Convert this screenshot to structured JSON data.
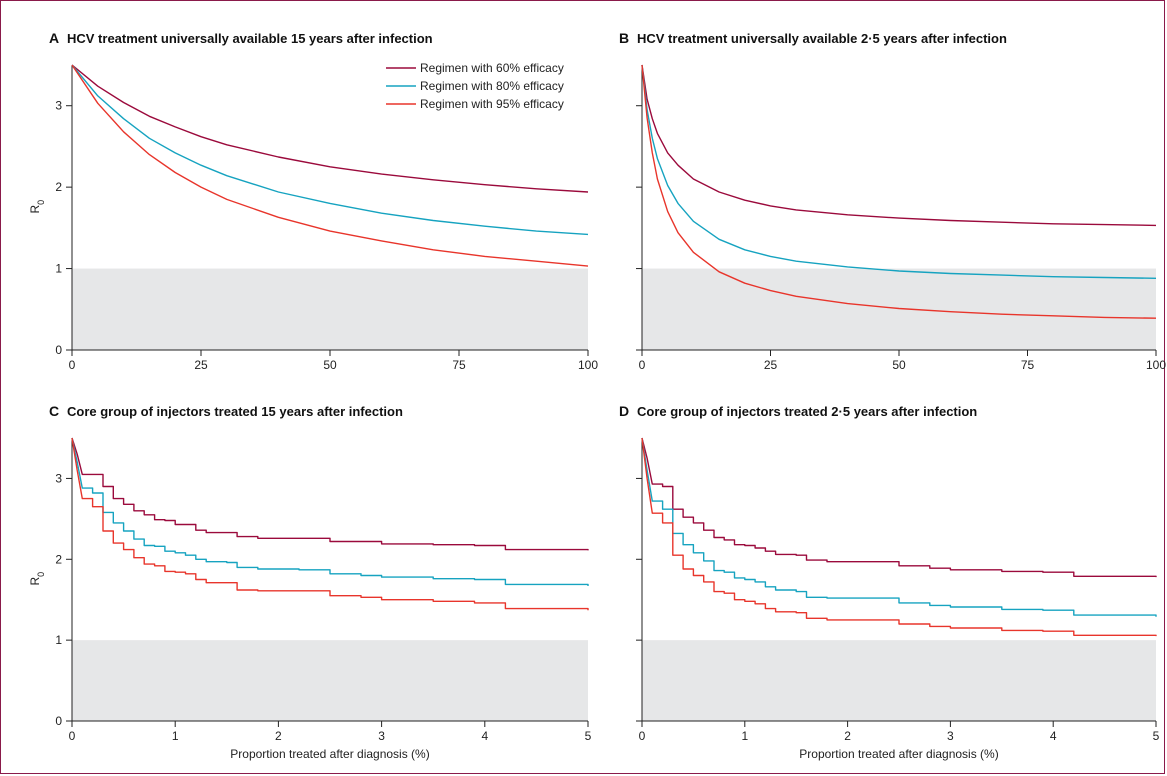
{
  "colors": {
    "60": "#9b0a3c",
    "80": "#16a3c0",
    "95": "#e8352b",
    "shade": "#e6e7e8",
    "frame": "#8a1a4a"
  },
  "legend": [
    {
      "key": "60",
      "label": "Regimen with 60% efficacy"
    },
    {
      "key": "80",
      "label": "Regimen with 80% efficacy"
    },
    {
      "key": "95",
      "label": "Regimen with 95% efficacy"
    }
  ],
  "chart_data": [
    {
      "panel": "A",
      "type": "line",
      "title": "HCV treatment universally available 15 years after infection",
      "ylabel": "R0",
      "xlabel": "",
      "xlim": [
        0,
        100
      ],
      "ylim": [
        0,
        3.5
      ],
      "xticks": [
        "0",
        "25",
        "50",
        "75",
        "100"
      ],
      "yticks": [
        "0",
        "1",
        "2",
        "3"
      ],
      "shade_below": 1,
      "series": [
        {
          "name": "Regimen with 60% efficacy",
          "key": "60",
          "x": [
            0,
            5,
            10,
            15,
            20,
            25,
            30,
            40,
            50,
            60,
            70,
            80,
            90,
            100
          ],
          "y": [
            3.5,
            3.24,
            3.04,
            2.87,
            2.74,
            2.62,
            2.52,
            2.37,
            2.25,
            2.16,
            2.09,
            2.03,
            1.98,
            1.94
          ]
        },
        {
          "name": "Regimen with 80% efficacy",
          "key": "80",
          "x": [
            0,
            5,
            10,
            15,
            20,
            25,
            30,
            40,
            50,
            60,
            70,
            80,
            90,
            100
          ],
          "y": [
            3.5,
            3.12,
            2.84,
            2.6,
            2.42,
            2.27,
            2.14,
            1.94,
            1.8,
            1.68,
            1.59,
            1.52,
            1.46,
            1.42
          ]
        },
        {
          "name": "Regimen with 95% efficacy",
          "key": "95",
          "x": [
            0,
            5,
            10,
            15,
            20,
            25,
            30,
            40,
            50,
            60,
            70,
            80,
            90,
            100
          ],
          "y": [
            3.5,
            3.03,
            2.68,
            2.4,
            2.18,
            2.0,
            1.85,
            1.63,
            1.46,
            1.34,
            1.23,
            1.15,
            1.09,
            1.03
          ]
        }
      ]
    },
    {
      "panel": "B",
      "type": "line",
      "title": "HCV treatment universally available 2·5 years after infection",
      "ylabel": "",
      "xlabel": "",
      "xlim": [
        0,
        100
      ],
      "ylim": [
        0,
        3.5
      ],
      "xticks": [
        "0",
        "25",
        "50",
        "75",
        "100"
      ],
      "yticks": [
        "",
        "",
        "",
        ""
      ],
      "shade_below": 1,
      "series": [
        {
          "name": "Regimen with 60% efficacy",
          "key": "60",
          "x": [
            0,
            1,
            2,
            3,
            5,
            7,
            10,
            15,
            20,
            25,
            30,
            40,
            50,
            60,
            70,
            80,
            90,
            100
          ],
          "y": [
            3.5,
            3.08,
            2.84,
            2.66,
            2.42,
            2.27,
            2.1,
            1.94,
            1.84,
            1.77,
            1.72,
            1.66,
            1.62,
            1.59,
            1.57,
            1.55,
            1.54,
            1.53
          ]
        },
        {
          "name": "Regimen with 80% efficacy",
          "key": "80",
          "x": [
            0,
            1,
            2,
            3,
            5,
            7,
            10,
            15,
            20,
            25,
            30,
            40,
            50,
            60,
            70,
            80,
            90,
            100
          ],
          "y": [
            3.5,
            2.95,
            2.6,
            2.35,
            2.02,
            1.8,
            1.58,
            1.36,
            1.23,
            1.15,
            1.09,
            1.02,
            0.97,
            0.94,
            0.92,
            0.9,
            0.89,
            0.88
          ]
        },
        {
          "name": "Regimen with 95% efficacy",
          "key": "95",
          "x": [
            0,
            1,
            2,
            3,
            5,
            7,
            10,
            15,
            20,
            25,
            30,
            40,
            50,
            60,
            70,
            80,
            90,
            100
          ],
          "y": [
            3.5,
            2.85,
            2.42,
            2.1,
            1.7,
            1.44,
            1.2,
            0.96,
            0.82,
            0.73,
            0.66,
            0.57,
            0.51,
            0.47,
            0.44,
            0.42,
            0.4,
            0.39
          ]
        }
      ]
    },
    {
      "panel": "C",
      "type": "line",
      "title": "Core group of injectors treated 15 years after infection",
      "ylabel": "R0",
      "xlabel": "Proportion treated after diagnosis (%)",
      "xlim": [
        0,
        5
      ],
      "ylim": [
        0,
        3.5
      ],
      "xticks": [
        "0",
        "1",
        "2",
        "3",
        "4",
        "5"
      ],
      "yticks": [
        "0",
        "1",
        "2",
        "3"
      ],
      "shade_below": 1,
      "series": [
        {
          "name": "Regimen with 60% efficacy",
          "key": "60",
          "x": [
            0,
            0.05,
            0.1,
            0.15,
            0.2,
            0.3,
            0.4,
            0.5,
            0.6,
            0.7,
            0.8,
            0.9,
            1.0,
            1.1,
            1.2,
            1.3,
            1.5,
            1.6,
            1.8,
            2.2,
            2.5,
            2.8,
            3.0,
            3.5,
            3.9,
            4.2,
            4.6,
            5.0
          ],
          "y": [
            3.5,
            3.3,
            3.05,
            3.05,
            3.05,
            2.9,
            2.75,
            2.68,
            2.6,
            2.55,
            2.49,
            2.48,
            2.43,
            2.43,
            2.36,
            2.33,
            2.33,
            2.28,
            2.26,
            2.26,
            2.22,
            2.22,
            2.19,
            2.18,
            2.17,
            2.12,
            2.12,
            2.11
          ]
        },
        {
          "name": "Regimen with 80% efficacy",
          "key": "80",
          "x": [
            0,
            0.05,
            0.1,
            0.15,
            0.2,
            0.3,
            0.4,
            0.5,
            0.6,
            0.7,
            0.8,
            0.9,
            1.0,
            1.1,
            1.2,
            1.3,
            1.5,
            1.6,
            1.8,
            2.2,
            2.5,
            2.8,
            3.0,
            3.5,
            3.9,
            4.2,
            4.6,
            5.0
          ],
          "y": [
            3.5,
            3.2,
            2.88,
            2.88,
            2.82,
            2.58,
            2.45,
            2.35,
            2.25,
            2.17,
            2.16,
            2.1,
            2.08,
            2.05,
            2.0,
            1.97,
            1.96,
            1.9,
            1.88,
            1.87,
            1.82,
            1.8,
            1.78,
            1.76,
            1.75,
            1.69,
            1.69,
            1.67
          ]
        },
        {
          "name": "Regimen with 95% efficacy",
          "key": "95",
          "x": [
            0,
            0.05,
            0.1,
            0.15,
            0.2,
            0.3,
            0.4,
            0.5,
            0.6,
            0.7,
            0.8,
            0.9,
            1.0,
            1.1,
            1.2,
            1.3,
            1.5,
            1.6,
            1.8,
            2.2,
            2.5,
            2.8,
            3.0,
            3.5,
            3.9,
            4.2,
            4.6,
            5.0
          ],
          "y": [
            3.5,
            3.1,
            2.75,
            2.75,
            2.65,
            2.35,
            2.2,
            2.12,
            2.02,
            1.94,
            1.92,
            1.85,
            1.84,
            1.82,
            1.75,
            1.71,
            1.71,
            1.62,
            1.61,
            1.61,
            1.55,
            1.53,
            1.5,
            1.48,
            1.46,
            1.39,
            1.39,
            1.37
          ]
        }
      ]
    },
    {
      "panel": "D",
      "type": "line",
      "title": "Core group of injectors treated 2·5 years after infection",
      "ylabel": "",
      "xlabel": "Proportion treated after diagnosis (%)",
      "xlim": [
        0,
        5
      ],
      "ylim": [
        0,
        3.5
      ],
      "xticks": [
        "0",
        "1",
        "2",
        "3",
        "4",
        "5"
      ],
      "yticks": [
        "",
        "",
        "",
        ""
      ],
      "shade_below": 1,
      "series": [
        {
          "name": "Regimen with 60% efficacy",
          "key": "60",
          "x": [
            0,
            0.05,
            0.1,
            0.15,
            0.2,
            0.3,
            0.4,
            0.5,
            0.6,
            0.7,
            0.8,
            0.9,
            1.0,
            1.1,
            1.2,
            1.3,
            1.5,
            1.6,
            1.8,
            2.2,
            2.5,
            2.8,
            3.0,
            3.5,
            3.9,
            4.2,
            4.6,
            5.0
          ],
          "y": [
            3.5,
            3.25,
            2.93,
            2.93,
            2.9,
            2.62,
            2.52,
            2.45,
            2.36,
            2.27,
            2.24,
            2.18,
            2.17,
            2.14,
            2.1,
            2.06,
            2.05,
            1.99,
            1.97,
            1.97,
            1.92,
            1.89,
            1.87,
            1.85,
            1.84,
            1.79,
            1.79,
            1.78
          ]
        },
        {
          "name": "Regimen with 80% efficacy",
          "key": "80",
          "x": [
            0,
            0.05,
            0.1,
            0.15,
            0.2,
            0.3,
            0.4,
            0.5,
            0.6,
            0.7,
            0.8,
            0.9,
            1.0,
            1.1,
            1.2,
            1.3,
            1.5,
            1.6,
            1.8,
            2.2,
            2.5,
            2.8,
            3.0,
            3.5,
            3.9,
            4.2,
            4.6,
            5.0
          ],
          "y": [
            3.5,
            3.1,
            2.72,
            2.72,
            2.62,
            2.32,
            2.18,
            2.08,
            1.98,
            1.86,
            1.84,
            1.77,
            1.75,
            1.72,
            1.66,
            1.62,
            1.6,
            1.53,
            1.52,
            1.52,
            1.46,
            1.43,
            1.41,
            1.38,
            1.37,
            1.31,
            1.31,
            1.29
          ]
        },
        {
          "name": "Regimen with 95% efficacy",
          "key": "95",
          "x": [
            0,
            0.05,
            0.1,
            0.15,
            0.2,
            0.3,
            0.4,
            0.5,
            0.6,
            0.7,
            0.8,
            0.9,
            1.0,
            1.1,
            1.2,
            1.3,
            1.5,
            1.6,
            1.8,
            2.2,
            2.5,
            2.8,
            3.0,
            3.5,
            3.9,
            4.2,
            4.6,
            5.0
          ],
          "y": [
            3.5,
            3.0,
            2.57,
            2.57,
            2.45,
            2.05,
            1.88,
            1.8,
            1.72,
            1.6,
            1.58,
            1.5,
            1.48,
            1.45,
            1.39,
            1.35,
            1.34,
            1.27,
            1.25,
            1.25,
            1.2,
            1.17,
            1.15,
            1.12,
            1.11,
            1.06,
            1.06,
            1.05
          ]
        }
      ]
    }
  ]
}
